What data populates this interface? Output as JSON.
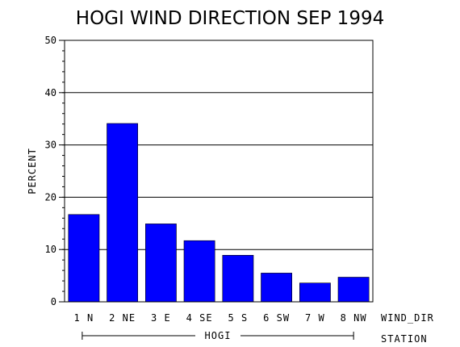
{
  "chart_data": {
    "type": "bar",
    "title": "HOGI WIND DIRECTION SEP 1994",
    "ylabel": "PERCENT",
    "xlabel": "WIND_DIR",
    "group_axis_label": "STATION",
    "group_label": "HOGI",
    "categories": [
      "1 N",
      "2 NE",
      "3 E",
      "4 SE",
      "5 S",
      "6 SW",
      "7 W",
      "8 NW"
    ],
    "values": [
      16.7,
      34.1,
      14.9,
      11.7,
      8.9,
      5.5,
      3.6,
      4.7
    ],
    "ylim": [
      0,
      50
    ],
    "yticks": [
      0,
      10,
      20,
      30,
      40,
      50
    ],
    "grid": true,
    "bar_color": "#0000ff"
  }
}
